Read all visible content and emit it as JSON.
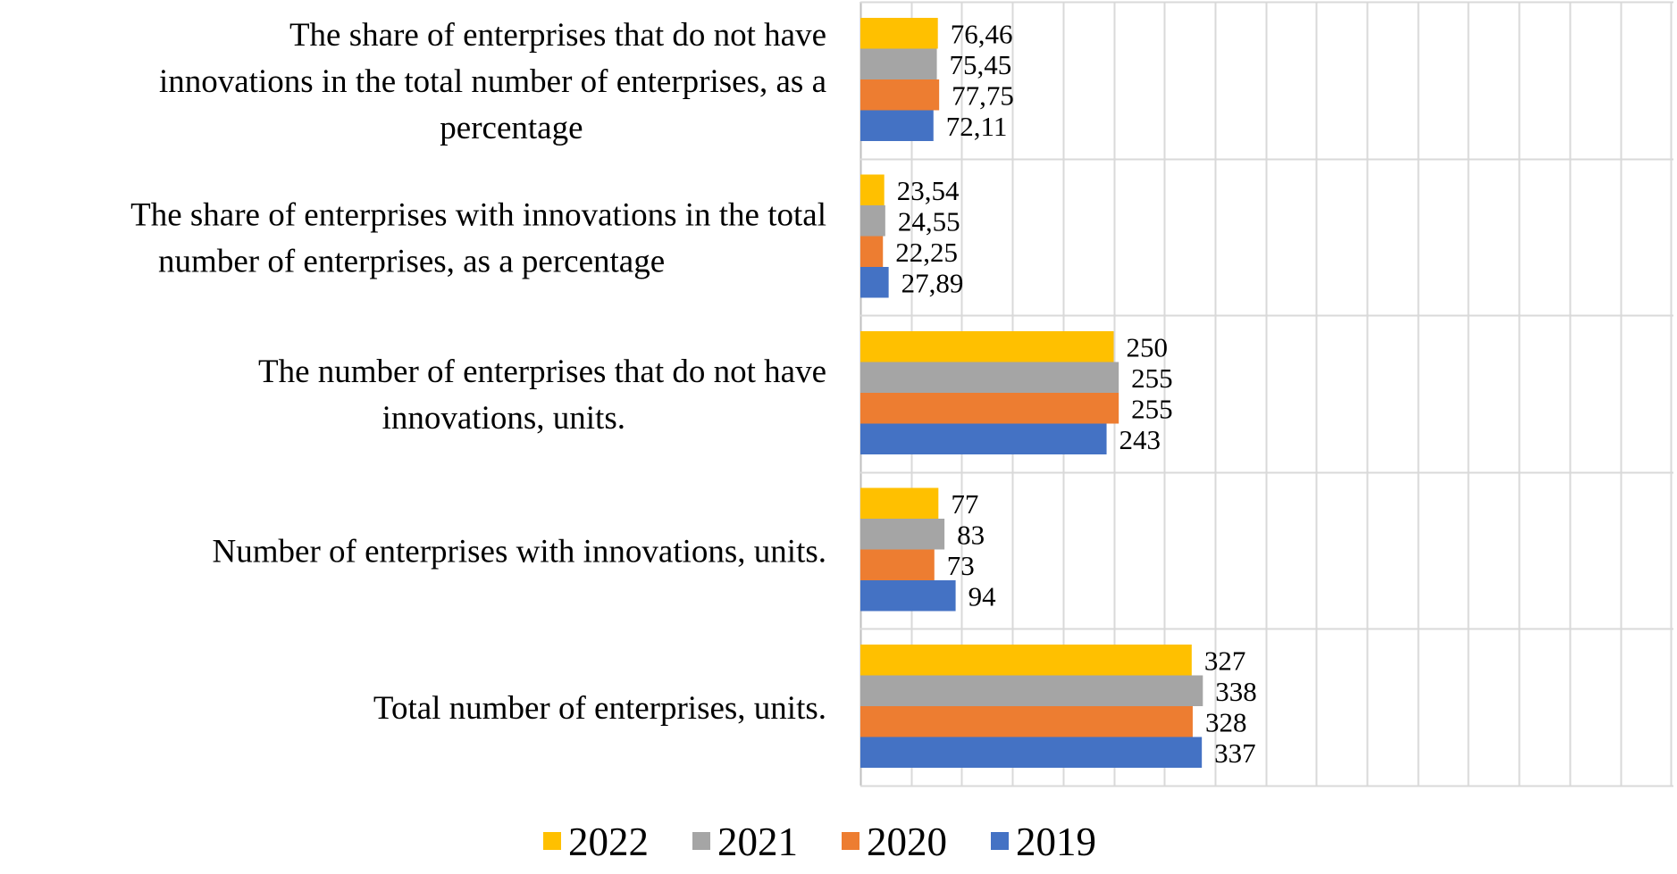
{
  "chart_data": {
    "type": "bar",
    "orientation": "horizontal",
    "categories": [
      "The share of enterprises that do not have innovations in the total number of enterprises, as a percentage",
      "The share of enterprises with innovations in the total number of enterprises, as a percentage",
      "The number of enterprises that do not have innovations, units.",
      "Number of enterprises with innovations, units.",
      "Total number of enterprises, units."
    ],
    "category_lines": [
      [
        "The share of enterprises that do not have",
        "innovations in the total number of enterprises, as a",
        "percentage"
      ],
      [
        "The share of enterprises with innovations in the total",
        "number of enterprises, as a percentage"
      ],
      [
        "The number of enterprises that do not have",
        "innovations, units."
      ],
      [
        "Number of enterprises with innovations, units."
      ],
      [
        "Total number of enterprises, units."
      ]
    ],
    "series": [
      {
        "name": "2022",
        "color": "#FFC000",
        "values": [
          76.46,
          23.54,
          250,
          77,
          327
        ],
        "labels": [
          "76,46",
          "23,54",
          "250",
          "77",
          "327"
        ]
      },
      {
        "name": "2021",
        "color": "#A5A5A5",
        "values": [
          75.45,
          24.55,
          255,
          83,
          338
        ],
        "labels": [
          "75,45",
          "24,55",
          "255",
          "83",
          "338"
        ]
      },
      {
        "name": "2020",
        "color": "#ED7D31",
        "values": [
          77.75,
          22.25,
          255,
          73,
          328
        ],
        "labels": [
          "77,75",
          "22,25",
          "255",
          "73",
          "328"
        ]
      },
      {
        "name": "2019",
        "color": "#4472C4",
        "values": [
          72.11,
          27.89,
          243,
          94,
          337
        ],
        "labels": [
          "72,11",
          "27,89",
          "243",
          "94",
          "337"
        ]
      }
    ],
    "xlim": [
      0,
      400
    ],
    "x_grid_step": 50,
    "grid": true,
    "legend": {
      "position": "bottom",
      "order": [
        "2022",
        "2021",
        "2020",
        "2019"
      ]
    },
    "title": "",
    "xlabel": "",
    "ylabel": ""
  }
}
